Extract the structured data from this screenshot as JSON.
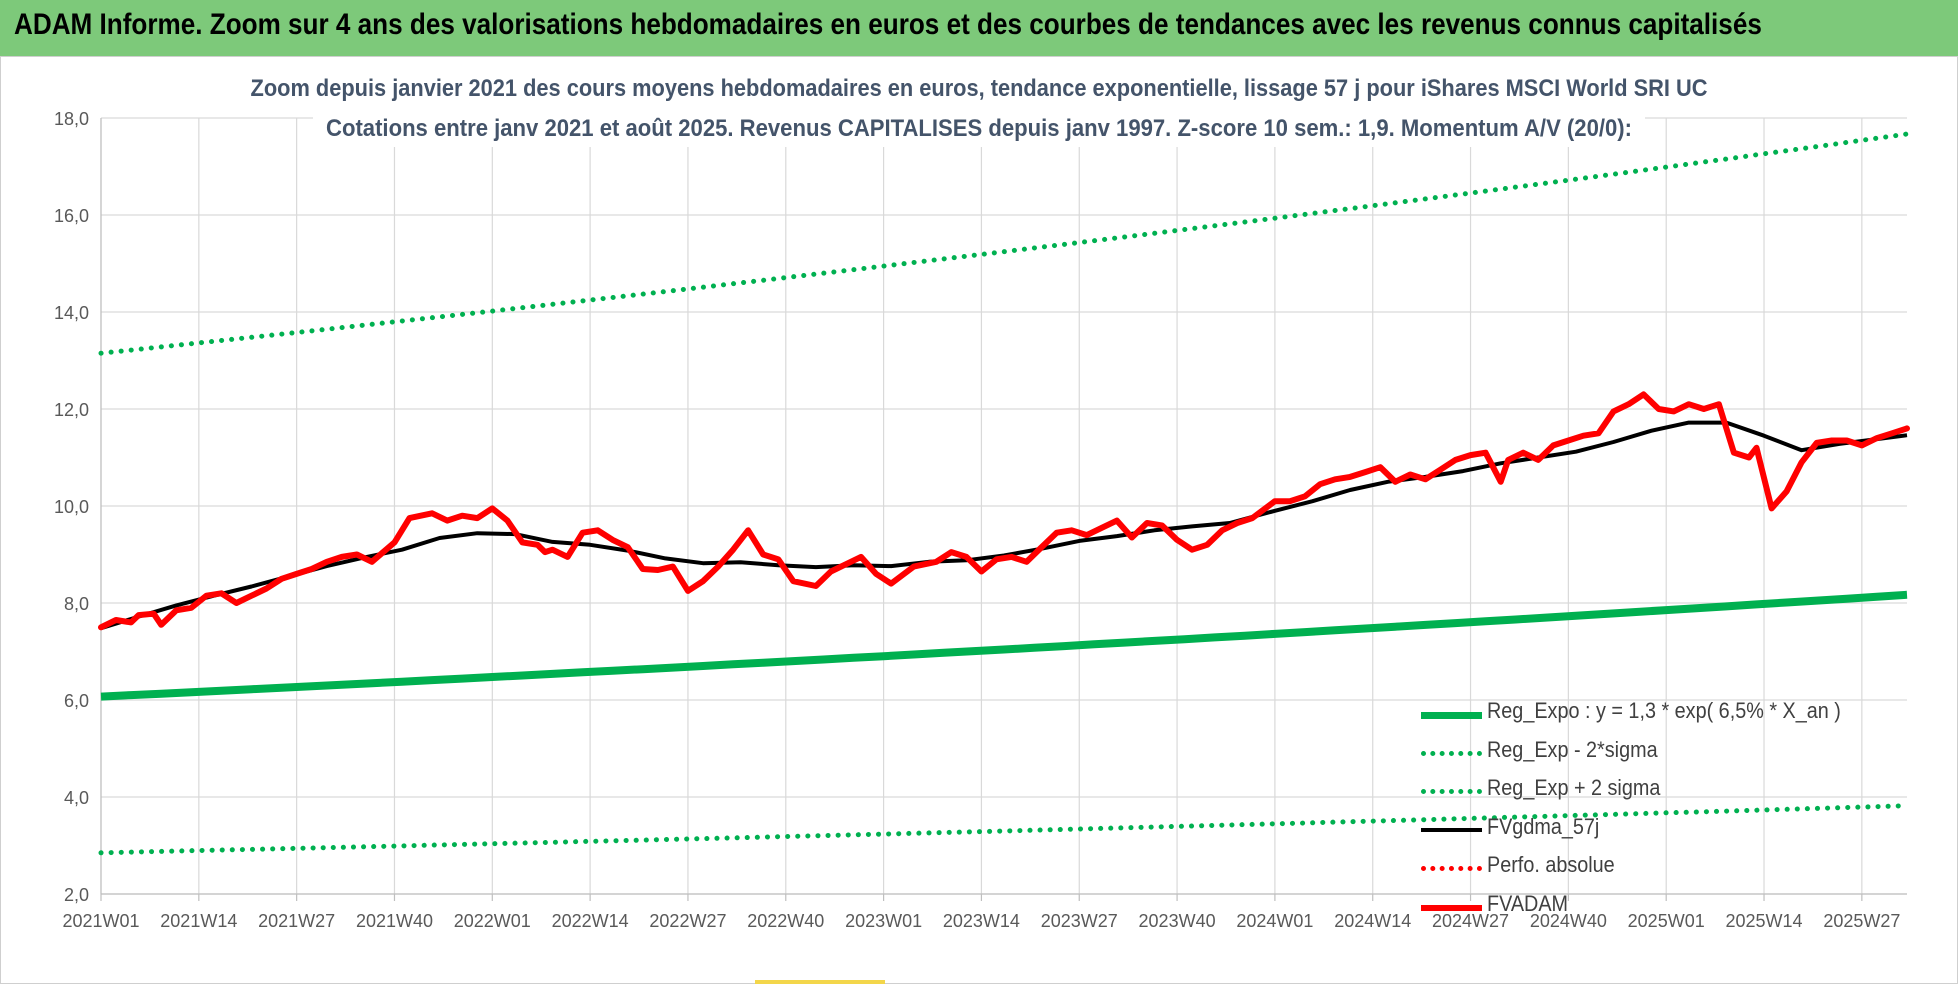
{
  "banner": {
    "title": "ADAM Informe. Zoom sur 4 ans des valorisations hebdomadaires en euros et des courbes de tendances avec les revenus connus capitalisés",
    "color": "#7dc97a"
  },
  "chart_data": {
    "type": "line",
    "title": "Zoom depuis janvier 2021 des cours moyens hebdomadaires en euros, tendance exponentielle, lissage 57 j pour iShares MSCI World SRI UC",
    "subtitle": "Cotations entre janv 2021 et août 2025. Revenus CAPITALISES depuis janv 1997. Z-score 10 sem.: 1,9. Momentum A/V (20/0):",
    "xlabel": "",
    "ylabel": "",
    "ylim": [
      2.0,
      18.0
    ],
    "y_ticks": [
      "2,0",
      "4,0",
      "6,0",
      "8,0",
      "10,0",
      "12,0",
      "14,0",
      "16,0",
      "18,0"
    ],
    "x_tick_labels": [
      "2021W01",
      "2021W14",
      "2021W27",
      "2021W40",
      "2022W01",
      "2022W14",
      "2022W27",
      "2022W40",
      "2023W01",
      "2023W14",
      "2023W27",
      "2023W40",
      "2024W01",
      "2024W14",
      "2024W27",
      "2024W40",
      "2025W01",
      "2025W14",
      "2025W27"
    ],
    "x_range": [
      "2021W01",
      "2025W33"
    ],
    "grid": true,
    "legend_position": "bottom-right",
    "series": [
      {
        "name": "Reg_Expo : y = 1,3 * exp( 6,5% *  X_an )",
        "color": "#00b050",
        "style": "solid",
        "x": [
          "2021W01",
          "2025W33"
        ],
        "values": [
          6.07,
          8.17
        ]
      },
      {
        "name": "Reg_Exp - 2*sigma",
        "color": "#00b050",
        "style": "dotted",
        "x": [
          "2021W01",
          "2025W33"
        ],
        "values": [
          2.85,
          3.82
        ]
      },
      {
        "name": "Reg_Exp + 2 sigma",
        "color": "#00b050",
        "style": "dotted",
        "x": [
          "2021W01",
          "2025W33"
        ],
        "values": [
          13.15,
          17.67
        ]
      },
      {
        "name": "FVgdma_57j",
        "color": "#000000",
        "style": "solid",
        "x": [
          "2021W01",
          "2021W06",
          "2021W11",
          "2021W16",
          "2021W21",
          "2021W26",
          "2021W31",
          "2021W36",
          "2021W41",
          "2021W46",
          "2021W51",
          "2022W04",
          "2022W09",
          "2022W14",
          "2022W19",
          "2022W24",
          "2022W29",
          "2022W34",
          "2022W39",
          "2022W44",
          "2022W49",
          "2023W02",
          "2023W07",
          "2023W12",
          "2023W17",
          "2023W22",
          "2023W27",
          "2023W32",
          "2023W37",
          "2023W42",
          "2023W47",
          "2024W01",
          "2024W06",
          "2024W11",
          "2024W16",
          "2024W21",
          "2024W26",
          "2024W31",
          "2024W36",
          "2024W41",
          "2024W46",
          "2024W51",
          "2025W04",
          "2025W09",
          "2025W14",
          "2025W19",
          "2025W24",
          "2025W29",
          "2025W33"
        ],
        "values": [
          7.48,
          7.72,
          7.95,
          8.15,
          8.34,
          8.55,
          8.76,
          8.94,
          9.1,
          9.34,
          9.44,
          9.42,
          9.26,
          9.2,
          9.08,
          8.92,
          8.82,
          8.84,
          8.78,
          8.74,
          8.78,
          8.76,
          8.85,
          8.88,
          8.98,
          9.12,
          9.28,
          9.38,
          9.5,
          9.58,
          9.65,
          9.9,
          10.1,
          10.33,
          10.5,
          10.6,
          10.72,
          10.88,
          11.0,
          11.12,
          11.32,
          11.55,
          11.72,
          11.72,
          11.45,
          11.15,
          11.28,
          11.38,
          11.46
        ]
      },
      {
        "name": "Perfo. absolue",
        "color": "#ff0000",
        "style": "dotted",
        "x": [],
        "values": []
      },
      {
        "name": "FVADAM",
        "color": "#ff0000",
        "style": "solid-thick",
        "x": [
          "2021W01",
          "2021W03",
          "2021W05",
          "2021W06",
          "2021W08",
          "2021W09",
          "2021W11",
          "2021W13",
          "2021W15",
          "2021W17",
          "2021W19",
          "2021W21",
          "2021W23",
          "2021W25",
          "2021W27",
          "2021W29",
          "2021W31",
          "2021W33",
          "2021W35",
          "2021W37",
          "2021W40",
          "2021W42",
          "2021W45",
          "2021W47",
          "2021W49",
          "2021W51",
          "2022W01",
          "2022W03",
          "2022W05",
          "2022W07",
          "2022W08",
          "2022W09",
          "2022W11",
          "2022W13",
          "2022W15",
          "2022W17",
          "2022W19",
          "2022W21",
          "2022W23",
          "2022W25",
          "2022W27",
          "2022W29",
          "2022W31",
          "2022W33",
          "2022W35",
          "2022W37",
          "2022W39",
          "2022W41",
          "2022W44",
          "2022W46",
          "2022W48",
          "2022W50",
          "2022W52",
          "2023W02",
          "2023W05",
          "2023W08",
          "2023W10",
          "2023W12",
          "2023W14",
          "2023W16",
          "2023W18",
          "2023W20",
          "2023W22",
          "2023W24",
          "2023W26",
          "2023W28",
          "2023W30",
          "2023W32",
          "2023W34",
          "2023W36",
          "2023W38",
          "2023W40",
          "2023W42",
          "2023W44",
          "2023W46",
          "2023W48",
          "2023W50",
          "2024W01",
          "2024W03",
          "2024W05",
          "2024W07",
          "2024W09",
          "2024W11",
          "2024W13",
          "2024W15",
          "2024W17",
          "2024W19",
          "2024W21",
          "2024W23",
          "2024W25",
          "2024W27",
          "2024W29",
          "2024W31",
          "2024W32",
          "2024W34",
          "2024W36",
          "2024W38",
          "2024W40",
          "2024W42",
          "2024W44",
          "2024W46",
          "2024W48",
          "2024W50",
          "2024W52",
          "2025W02",
          "2025W04",
          "2025W06",
          "2025W08",
          "2025W10",
          "2025W12",
          "2025W13",
          "2025W15",
          "2025W17",
          "2025W19",
          "2025W21",
          "2025W23",
          "2025W25",
          "2025W27",
          "2025W29",
          "2025W31",
          "2025W33"
        ],
        "values": [
          7.5,
          7.65,
          7.6,
          7.75,
          7.78,
          7.55,
          7.85,
          7.9,
          8.15,
          8.2,
          8.0,
          8.15,
          8.3,
          8.5,
          8.6,
          8.7,
          8.85,
          8.95,
          9.0,
          8.85,
          9.25,
          9.75,
          9.85,
          9.7,
          9.8,
          9.75,
          9.95,
          9.7,
          9.25,
          9.2,
          9.05,
          9.1,
          8.95,
          9.45,
          9.5,
          9.3,
          9.15,
          8.7,
          8.68,
          8.75,
          8.25,
          8.45,
          8.75,
          9.1,
          9.5,
          9.0,
          8.9,
          8.45,
          8.35,
          8.65,
          8.8,
          8.95,
          8.6,
          8.4,
          8.75,
          8.85,
          9.05,
          8.95,
          8.65,
          8.9,
          8.95,
          8.85,
          9.15,
          9.45,
          9.5,
          9.4,
          9.55,
          9.7,
          9.35,
          9.65,
          9.6,
          9.3,
          9.1,
          9.2,
          9.5,
          9.65,
          9.75,
          10.1,
          10.1,
          10.2,
          10.45,
          10.55,
          10.6,
          10.7,
          10.8,
          10.5,
          10.65,
          10.55,
          10.75,
          10.95,
          11.05,
          11.1,
          10.5,
          10.95,
          11.1,
          10.95,
          11.25,
          11.35,
          11.45,
          11.5,
          11.95,
          12.1,
          12.3,
          12.0,
          11.95,
          12.1,
          12.0,
          12.1,
          11.1,
          11.0,
          11.2,
          9.95,
          10.3,
          10.9,
          11.3,
          11.35,
          11.35,
          11.25,
          11.4,
          11.5,
          11.6
        ]
      }
    ]
  }
}
